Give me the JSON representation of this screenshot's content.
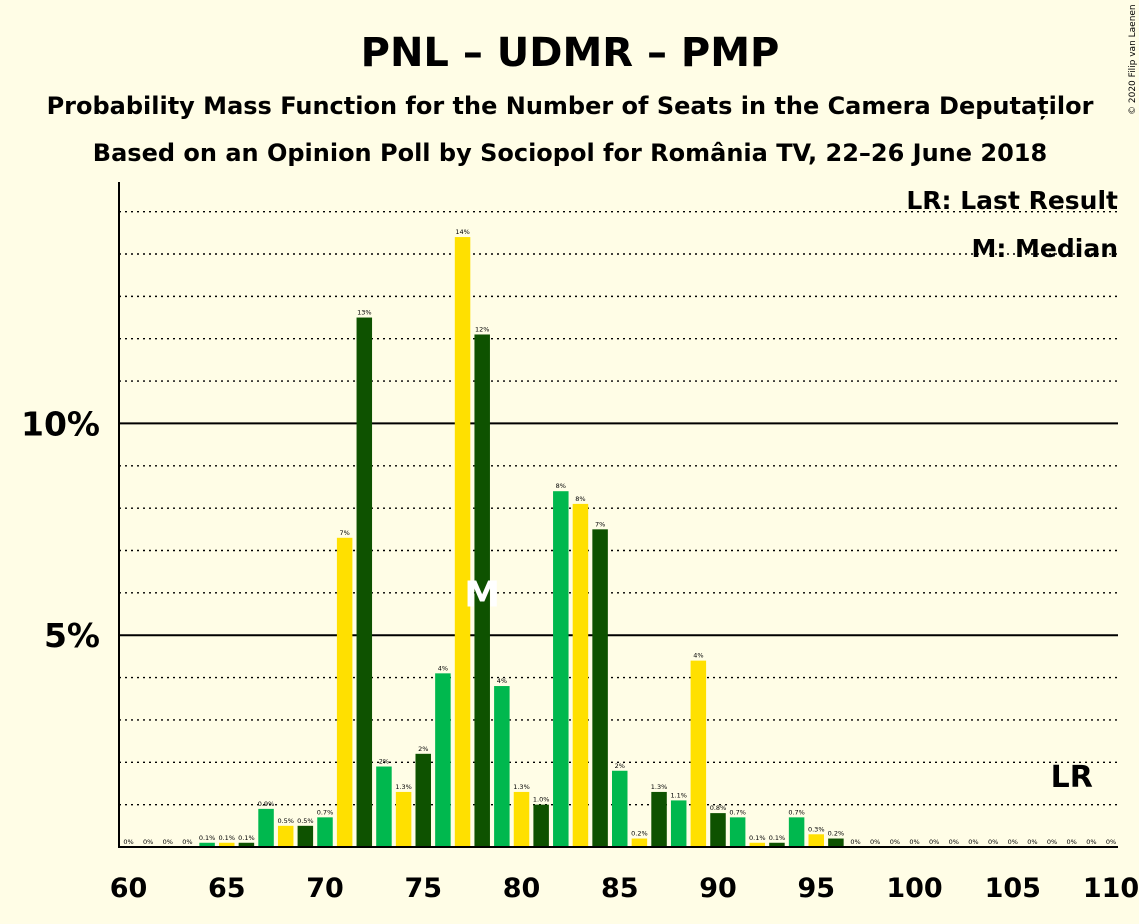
{
  "chart_data": {
    "type": "bar",
    "title": "PNL – UDMR – PMP",
    "subtitle": "Probability Mass Function for the Number of Seats in the Camera Deputaților",
    "source": "Based on an Opinion Poll by Sociopol for România TV, 22–26 June 2018",
    "copyright": "© 2020 Filip van Laenen",
    "legend": {
      "last_result": "LR: Last Result",
      "median": "M: Median",
      "placement": "top-right"
    },
    "x": [
      60,
      61,
      62,
      63,
      64,
      65,
      66,
      67,
      68,
      69,
      70,
      71,
      72,
      73,
      74,
      75,
      76,
      77,
      78,
      79,
      80,
      81,
      82,
      83,
      84,
      85,
      86,
      87,
      88,
      89,
      90,
      91,
      92,
      93,
      94,
      95,
      96,
      97,
      98,
      99,
      100,
      101,
      102,
      103,
      104,
      105,
      106,
      107,
      108,
      109,
      110
    ],
    "values": [
      0,
      0,
      0,
      0,
      0.1,
      0.1,
      0.1,
      0.9,
      0.5,
      0.5,
      0.7,
      7.3,
      12.5,
      1.9,
      1.3,
      2.2,
      4.1,
      14.4,
      12.1,
      3.8,
      1.3,
      1.0,
      8.4,
      8.1,
      7.5,
      1.8,
      0.2,
      1.3,
      1.1,
      4.4,
      0.8,
      0.7,
      0.1,
      0.1,
      0.7,
      0.3,
      0.2,
      0,
      0,
      0,
      0,
      0,
      0,
      0,
      0,
      0,
      0,
      0,
      0,
      0,
      0
    ],
    "labels": [
      "0%",
      "0%",
      "0%",
      "0%",
      "0.1%",
      "0.1%",
      "0.1%",
      "0.9%",
      "0.5%",
      "0.5%",
      "0.7%",
      "7%",
      "13%",
      "2%",
      "1.3%",
      "2%",
      "4%",
      "14%",
      "12%",
      "4%",
      "1.3%",
      "1.0%",
      "8%",
      "8%",
      "7%",
      "2%",
      "0.2%",
      "1.3%",
      "1.1%",
      "4%",
      "0.8%",
      "0.7%",
      "0.1%",
      "0.1%",
      "0.7%",
      "0.3%",
      "0.2%",
      "0%",
      "0%",
      "0%",
      "0%",
      "0%",
      "0%",
      "0%",
      "0%",
      "0%",
      "0%",
      "0%",
      "0%",
      "0%",
      "0%"
    ],
    "x_tick_labels": [
      "60",
      "65",
      "70",
      "75",
      "80",
      "85",
      "90",
      "95",
      "100",
      "105",
      "110"
    ],
    "y_tick_labels": [
      "5%",
      "10%"
    ],
    "y_ticks": [
      5,
      10
    ],
    "ylim": [
      0,
      15.7
    ],
    "xlim": [
      60,
      110
    ],
    "median_seat": 78,
    "median_mark": "M",
    "last_result_seat": 108,
    "last_result_mark": "LR",
    "colors": {
      "dark_green": "#0E5200",
      "green": "#00B84E",
      "yellow": "#FFE000",
      "background": "#FFFDE6",
      "axis": "#000000"
    },
    "bar_color_cycle": [
      "dark_green",
      "green",
      "yellow"
    ],
    "grid": "dotted-minor-solid-major"
  }
}
